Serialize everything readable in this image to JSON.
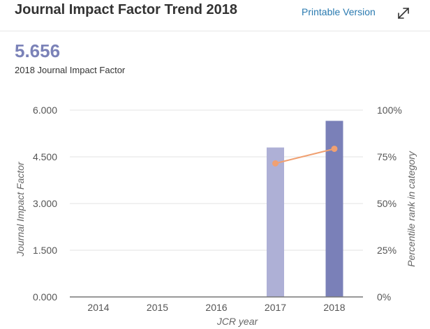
{
  "header": {
    "title": "Journal Impact Factor Trend 2018",
    "printable_label": "Printable Version",
    "expand_icon": "expand-diagonal-arrows-icon"
  },
  "metric": {
    "value": "5.656",
    "label": "2018 Journal Impact Factor"
  },
  "colors": {
    "bar_2017": "#aeb0d6",
    "bar_2018": "#7a80b8",
    "line": "#f0a071",
    "grid": "#e3e3e3",
    "link": "#2a7ab0",
    "metric": "#7b82b8"
  },
  "chart_data": {
    "type": "bar",
    "categories": [
      "2014",
      "2015",
      "2016",
      "2017",
      "2018"
    ],
    "series": [
      {
        "axis": "left",
        "values": [
          null,
          null,
          null,
          4.8,
          5.656
        ]
      },
      {
        "type": "line",
        "axis": "right",
        "values": [
          null,
          null,
          null,
          71.5,
          79.3
        ]
      }
    ],
    "xlabel": "JCR year",
    "ylabel": "Journal Impact Factor",
    "ylabel_right": "Percentile rank in category",
    "ylim": [
      0,
      6
    ],
    "yticks": [
      "0.000",
      "1.500",
      "3.000",
      "4.500",
      "6.000"
    ],
    "ylim_right": [
      0,
      100
    ],
    "yticks_right": [
      "0%",
      "25%",
      "50%",
      "75%",
      "100%"
    ],
    "grid": true
  }
}
